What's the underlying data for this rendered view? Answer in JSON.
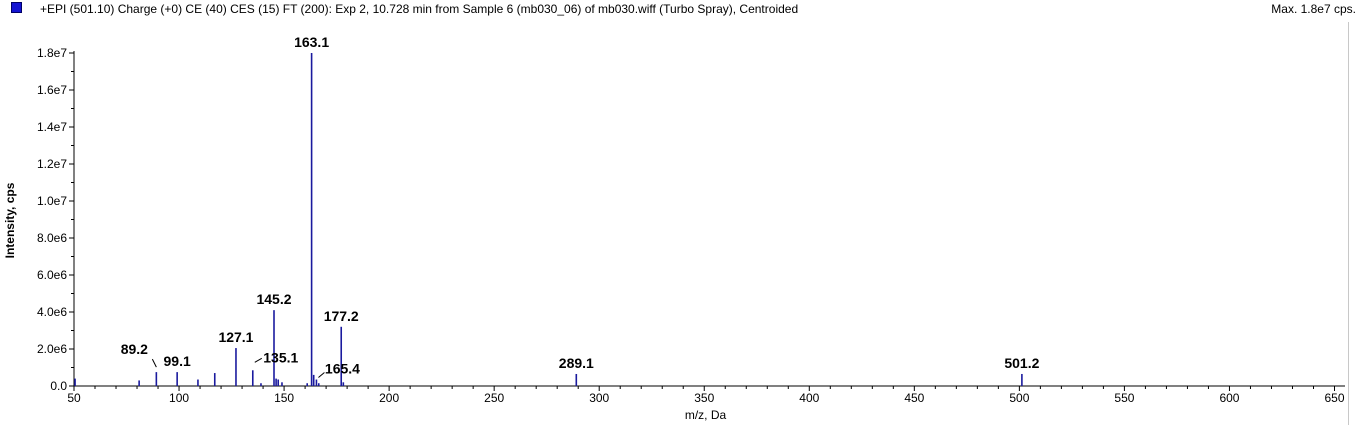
{
  "header": {
    "title": "+EPI (501.10) Charge (+0) CE (40) CES (15) FT (200): Exp 2, 10.728 min from Sample 6 (mb030_06) of mb030.wiff (Turbo Spray), Centroided",
    "max_label": "Max. 1.8e7 cps."
  },
  "colors": {
    "series": "#1a1a9e",
    "axis": "#000000",
    "legend_swatch": "#1414d2"
  },
  "chart_data": {
    "type": "bar",
    "title": "+EPI (501.10) Charge (+0) CE (40) CES (15) FT (200): Exp 2, 10.728 min from Sample 6 (mb030_06) of mb030.wiff (Turbo Spray), Centroided",
    "xlabel": "m/z, Da",
    "ylabel": "Intensity, cps",
    "xlim": [
      50,
      655
    ],
    "ylim": [
      0,
      18000000
    ],
    "x_ticks": [
      {
        "value": 50,
        "label": "50"
      },
      {
        "value": 100,
        "label": "100"
      },
      {
        "value": 150,
        "label": "150"
      },
      {
        "value": 200,
        "label": "200"
      },
      {
        "value": 250,
        "label": "250"
      },
      {
        "value": 300,
        "label": "300"
      },
      {
        "value": 350,
        "label": "350"
      },
      {
        "value": 400,
        "label": "400"
      },
      {
        "value": 450,
        "label": "450"
      },
      {
        "value": 500,
        "label": "500"
      },
      {
        "value": 550,
        "label": "550"
      },
      {
        "value": 600,
        "label": "600"
      },
      {
        "value": 650,
        "label": "650"
      }
    ],
    "y_ticks": [
      {
        "value": 0,
        "label": "0.0"
      },
      {
        "value": 2000000,
        "label": "2.0e6"
      },
      {
        "value": 4000000,
        "label": "4.0e6"
      },
      {
        "value": 6000000,
        "label": "6.0e6"
      },
      {
        "value": 8000000,
        "label": "8.0e6"
      },
      {
        "value": 10000000,
        "label": "1.0e7"
      },
      {
        "value": 12000000,
        "label": "1.2e7"
      },
      {
        "value": 14000000,
        "label": "1.4e7"
      },
      {
        "value": 16000000,
        "label": "1.6e7"
      },
      {
        "value": 18000000,
        "label": "1.8e7"
      }
    ],
    "grid": false,
    "legend": "top-left",
    "peaks": [
      {
        "mz": 50.5,
        "intensity": 400000
      },
      {
        "mz": 81.0,
        "intensity": 300000
      },
      {
        "mz": 89.2,
        "intensity": 750000
      },
      {
        "mz": 99.1,
        "intensity": 750000
      },
      {
        "mz": 109.0,
        "intensity": 350000
      },
      {
        "mz": 117.0,
        "intensity": 700000
      },
      {
        "mz": 127.1,
        "intensity": 2050000
      },
      {
        "mz": 135.1,
        "intensity": 850000
      },
      {
        "mz": 139.0,
        "intensity": 150000
      },
      {
        "mz": 145.2,
        "intensity": 4100000
      },
      {
        "mz": 146.2,
        "intensity": 400000
      },
      {
        "mz": 147.2,
        "intensity": 350000
      },
      {
        "mz": 149.0,
        "intensity": 200000
      },
      {
        "mz": 161.0,
        "intensity": 150000
      },
      {
        "mz": 163.1,
        "intensity": 18000000
      },
      {
        "mz": 164.1,
        "intensity": 600000
      },
      {
        "mz": 165.4,
        "intensity": 350000
      },
      {
        "mz": 166.5,
        "intensity": 150000
      },
      {
        "mz": 177.2,
        "intensity": 3200000
      },
      {
        "mz": 178.2,
        "intensity": 200000
      },
      {
        "mz": 289.1,
        "intensity": 650000
      },
      {
        "mz": 501.2,
        "intensity": 650000
      }
    ],
    "peak_labels": [
      {
        "mz": 89.2,
        "text": "89.2",
        "leader": true
      },
      {
        "mz": 99.1,
        "text": "99.1",
        "leader": false
      },
      {
        "mz": 127.1,
        "text": "127.1",
        "leader": false
      },
      {
        "mz": 135.1,
        "text": "135.1",
        "leader": true
      },
      {
        "mz": 145.2,
        "text": "145.2",
        "leader": false
      },
      {
        "mz": 163.1,
        "text": "163.1",
        "leader": false
      },
      {
        "mz": 165.4,
        "text": "165.4",
        "leader": true
      },
      {
        "mz": 177.2,
        "text": "177.2",
        "leader": false
      },
      {
        "mz": 289.1,
        "text": "289.1",
        "leader": false
      },
      {
        "mz": 501.2,
        "text": "501.2",
        "leader": false
      }
    ]
  }
}
